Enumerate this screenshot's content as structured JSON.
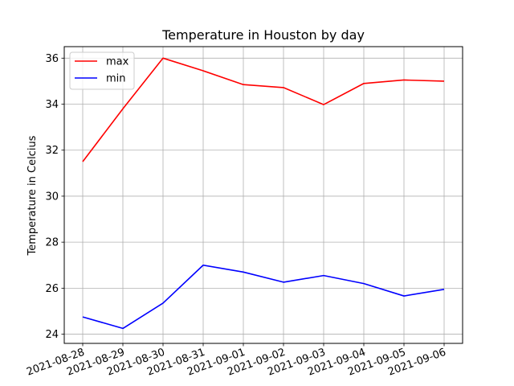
{
  "chart_data": {
    "type": "line",
    "title": "Temperature in Houston by day",
    "xlabel": "",
    "ylabel": "Temperature in Celcius",
    "x": [
      "2021-08-28",
      "2021-08-29",
      "2021-08-30",
      "2021-08-31",
      "2021-09-01",
      "2021-09-02",
      "2021-09-03",
      "2021-09-04",
      "2021-09-05",
      "2021-09-06"
    ],
    "yticks": [
      24,
      26,
      28,
      30,
      32,
      34,
      36
    ],
    "ylim": [
      23.6,
      36.5
    ],
    "grid": true,
    "legend_position": "top-left",
    "series": [
      {
        "name": "max",
        "color": "#ff0000",
        "values": [
          31.5,
          33.8,
          36.0,
          35.45,
          34.85,
          34.72,
          33.98,
          34.9,
          35.05,
          35.0
        ]
      },
      {
        "name": "min",
        "color": "#0000ff",
        "values": [
          24.75,
          24.25,
          25.35,
          27.0,
          26.7,
          26.26,
          26.55,
          26.2,
          25.66,
          25.95
        ]
      }
    ]
  }
}
